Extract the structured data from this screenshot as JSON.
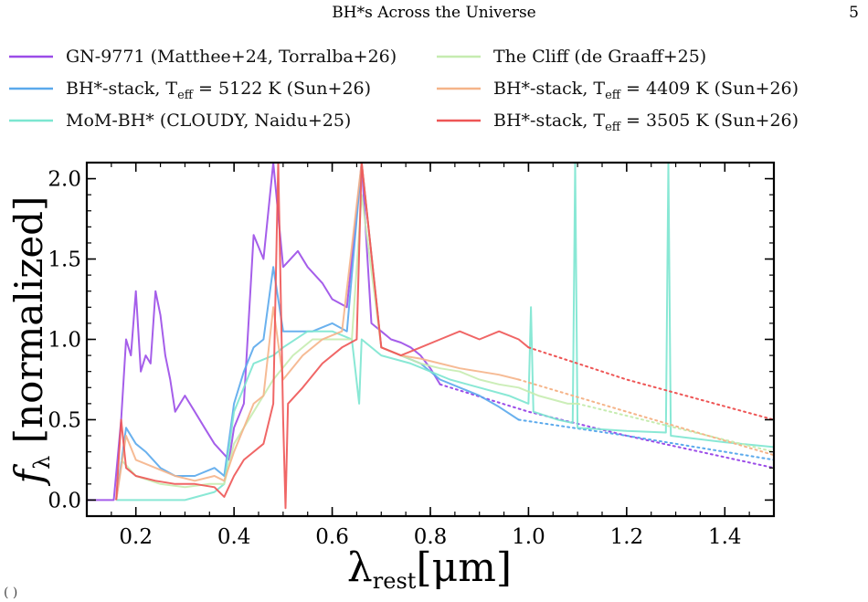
{
  "page": {
    "header_title": "BH*s Across the Universe",
    "page_number": "5",
    "footer_fragment": "( )"
  },
  "chart_data": {
    "type": "line",
    "xlabel": "λ_rest [μm]",
    "ylabel": "f_λ [normalized]",
    "xlim": [
      0.1,
      1.5
    ],
    "ylim": [
      -0.1,
      2.1
    ],
    "xticks": [
      "0.2",
      "0.4",
      "0.6",
      "0.8",
      "1.0",
      "1.2",
      "1.4"
    ],
    "yticks": [
      "0.0",
      "0.5",
      "1.0",
      "1.5",
      "2.0"
    ],
    "grid": false,
    "legend_position": "top",
    "series": [
      {
        "name": "GN-9771 (Matthee+24, Torralba+26)",
        "color": "#9b4ce8",
        "x": [
          0.1,
          0.155,
          0.17,
          0.18,
          0.19,
          0.2,
          0.21,
          0.22,
          0.23,
          0.24,
          0.25,
          0.26,
          0.27,
          0.28,
          0.3,
          0.32,
          0.34,
          0.36,
          0.375,
          0.39,
          0.4,
          0.42,
          0.44,
          0.46,
          0.48,
          0.5,
          0.53,
          0.55,
          0.58,
          0.6,
          0.63,
          0.66,
          0.68,
          0.7,
          0.72,
          0.74,
          0.76,
          0.78,
          0.8,
          0.82
        ],
        "y": [
          0.0,
          0.0,
          0.5,
          1.0,
          0.9,
          1.3,
          0.8,
          0.9,
          0.85,
          1.3,
          1.15,
          0.9,
          0.75,
          0.55,
          0.65,
          0.55,
          0.45,
          0.35,
          0.3,
          0.25,
          0.45,
          0.6,
          1.65,
          1.5,
          2.1,
          1.45,
          1.55,
          1.45,
          1.35,
          1.25,
          1.2,
          2.1,
          1.1,
          1.05,
          1.0,
          0.98,
          0.95,
          0.9,
          0.82,
          0.72
        ],
        "extension": {
          "x": [
            0.82,
            1.0,
            1.2,
            1.5
          ],
          "y": [
            0.72,
            0.55,
            0.4,
            0.2
          ]
        }
      },
      {
        "name": "BH*-stack, T_eff = 5122 K (Sun+26)",
        "color": "#5aa9ec",
        "x": [
          0.16,
          0.18,
          0.2,
          0.22,
          0.25,
          0.28,
          0.32,
          0.36,
          0.38,
          0.4,
          0.42,
          0.44,
          0.46,
          0.48,
          0.5,
          0.53,
          0.56,
          0.6,
          0.63,
          0.66,
          0.7,
          0.74,
          0.78,
          0.82,
          0.86,
          0.9,
          0.94,
          0.98
        ],
        "y": [
          0.0,
          0.45,
          0.35,
          0.3,
          0.2,
          0.15,
          0.15,
          0.2,
          0.15,
          0.6,
          0.8,
          0.95,
          1.0,
          1.45,
          1.05,
          1.05,
          1.05,
          1.1,
          1.05,
          2.1,
          0.95,
          0.9,
          0.85,
          0.75,
          0.7,
          0.65,
          0.58,
          0.5
        ],
        "extension": {
          "x": [
            0.98,
            1.2,
            1.5
          ],
          "y": [
            0.5,
            0.4,
            0.25
          ]
        }
      },
      {
        "name": "MoM-BH* (CLOUDY, Naidu+25)",
        "color": "#7ce6d0",
        "x": [
          0.16,
          0.2,
          0.3,
          0.36,
          0.38,
          0.4,
          0.44,
          0.48,
          0.5,
          0.55,
          0.6,
          0.64,
          0.655,
          0.66,
          0.7,
          0.76,
          0.8,
          0.84,
          0.9,
          0.96,
          1.0,
          1.005,
          1.01,
          1.06,
          1.09,
          1.095,
          1.1,
          1.2,
          1.28,
          1.285,
          1.29,
          1.4,
          1.5
        ],
        "y": [
          0.0,
          0.0,
          0.0,
          0.05,
          0.1,
          0.55,
          0.85,
          0.9,
          0.95,
          1.05,
          1.05,
          1.0,
          0.6,
          1.0,
          0.9,
          0.85,
          0.8,
          0.75,
          0.7,
          0.65,
          0.6,
          1.2,
          0.55,
          0.5,
          0.48,
          2.1,
          0.45,
          0.43,
          0.42,
          2.1,
          0.4,
          0.36,
          0.33
        ]
      },
      {
        "name": "The Cliff (de Graaff+25)",
        "color": "#c6ecb0",
        "x": [
          0.17,
          0.2,
          0.25,
          0.3,
          0.35,
          0.38,
          0.4,
          0.44,
          0.48,
          0.52,
          0.56,
          0.6,
          0.64,
          0.66,
          0.7,
          0.74,
          0.78,
          0.82,
          0.86,
          0.9,
          0.94,
          0.98,
          1.02,
          1.08,
          1.1
        ],
        "y": [
          0.25,
          0.15,
          0.1,
          0.08,
          0.1,
          0.1,
          0.35,
          0.55,
          0.75,
          0.9,
          1.0,
          1.0,
          1.0,
          1.9,
          0.95,
          0.9,
          0.85,
          0.82,
          0.8,
          0.75,
          0.72,
          0.7,
          0.65,
          0.6,
          0.6
        ],
        "extension": {
          "x": [
            1.1,
            1.3,
            1.5
          ],
          "y": [
            0.6,
            0.45,
            0.3
          ]
        }
      },
      {
        "name": "BH*-stack, T_eff = 4409 K (Sun+26)",
        "color": "#f5b489",
        "x": [
          0.16,
          0.18,
          0.2,
          0.24,
          0.28,
          0.32,
          0.36,
          0.38,
          0.4,
          0.42,
          0.44,
          0.46,
          0.48,
          0.5,
          0.54,
          0.58,
          0.62,
          0.66,
          0.7,
          0.74,
          0.78,
          0.82,
          0.86,
          0.9,
          0.94,
          0.98
        ],
        "y": [
          0.0,
          0.4,
          0.25,
          0.2,
          0.15,
          0.12,
          0.15,
          0.12,
          0.3,
          0.45,
          0.6,
          0.65,
          1.2,
          0.75,
          0.9,
          1.0,
          1.05,
          2.1,
          0.95,
          0.9,
          0.88,
          0.85,
          0.82,
          0.8,
          0.78,
          0.75
        ],
        "extension": {
          "x": [
            0.98,
            1.2,
            1.5
          ],
          "y": [
            0.75,
            0.55,
            0.28
          ]
        }
      },
      {
        "name": "BH*-stack, T_eff = 3505 K (Sun+26)",
        "color": "#ee5555",
        "x": [
          0.16,
          0.17,
          0.18,
          0.2,
          0.24,
          0.28,
          0.32,
          0.36,
          0.38,
          0.4,
          0.42,
          0.44,
          0.46,
          0.48,
          0.49,
          0.5,
          0.505,
          0.51,
          0.54,
          0.58,
          0.62,
          0.65,
          0.66,
          0.7,
          0.74,
          0.78,
          0.82,
          0.86,
          0.9,
          0.94,
          0.98,
          1.0
        ],
        "y": [
          0.0,
          0.5,
          0.2,
          0.15,
          0.12,
          0.1,
          0.1,
          0.08,
          0.02,
          0.15,
          0.25,
          0.3,
          0.35,
          0.6,
          2.1,
          0.5,
          -0.05,
          0.6,
          0.7,
          0.85,
          0.95,
          1.0,
          2.1,
          0.95,
          0.9,
          0.95,
          1.0,
          1.05,
          1.0,
          1.05,
          1.0,
          0.95
        ],
        "extension": {
          "x": [
            1.0,
            1.2,
            1.5
          ],
          "y": [
            0.95,
            0.75,
            0.5
          ]
        }
      }
    ]
  }
}
